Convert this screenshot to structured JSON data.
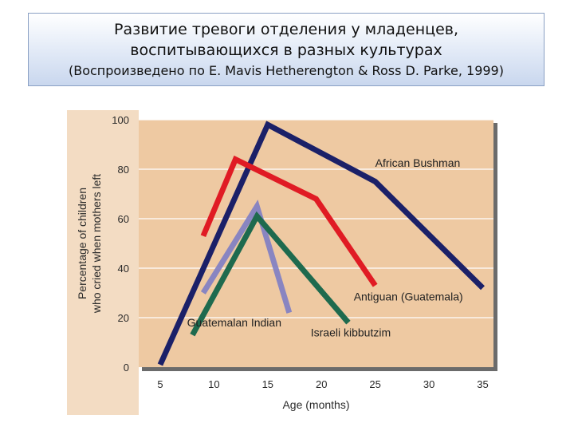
{
  "header": {
    "title_line1": "Развитие тревоги отделения у младенцев,",
    "title_line2": "воспитывающихся в разных культурах",
    "source": "(Воспроизведено по E. Mavis Hetherengton & Ross D. Parke, 1999)"
  },
  "chart_data": {
    "type": "line",
    "xlabel": "Age (months)",
    "ylabel_line1": "Percentage of children",
    "ylabel_line2": "who cried when mothers left",
    "xlim": [
      3,
      36
    ],
    "ylim": [
      0,
      100
    ],
    "x_ticks": [
      5,
      10,
      15,
      20,
      25,
      30,
      35
    ],
    "y_ticks": [
      0,
      20,
      40,
      60,
      80,
      100
    ],
    "grid": true,
    "background_color": "#eec9a2",
    "series": [
      {
        "name": "African Bushman",
        "color": "#1b2068",
        "x": [
          5,
          15,
          25,
          35
        ],
        "y": [
          1,
          98,
          75,
          32
        ],
        "label_at": [
          25,
          81
        ]
      },
      {
        "name": "Antiguan (Guatemala)",
        "color": "#e01b24",
        "x": [
          9,
          12,
          19.5,
          25
        ],
        "y": [
          53,
          84,
          68,
          33
        ],
        "label_at": [
          23,
          27
        ]
      },
      {
        "name": "Guatemalan Indian",
        "color": "#7d7dc4",
        "x": [
          9,
          14,
          17
        ],
        "y": [
          30,
          65,
          22
        ],
        "label_at": [
          7.5,
          16.5
        ]
      },
      {
        "name": "Israeli kibbutzim",
        "color": "#1e6a4e",
        "x": [
          8,
          14,
          22.5
        ],
        "y": [
          13,
          61,
          18
        ],
        "label_at": [
          19,
          12.5
        ]
      }
    ]
  }
}
